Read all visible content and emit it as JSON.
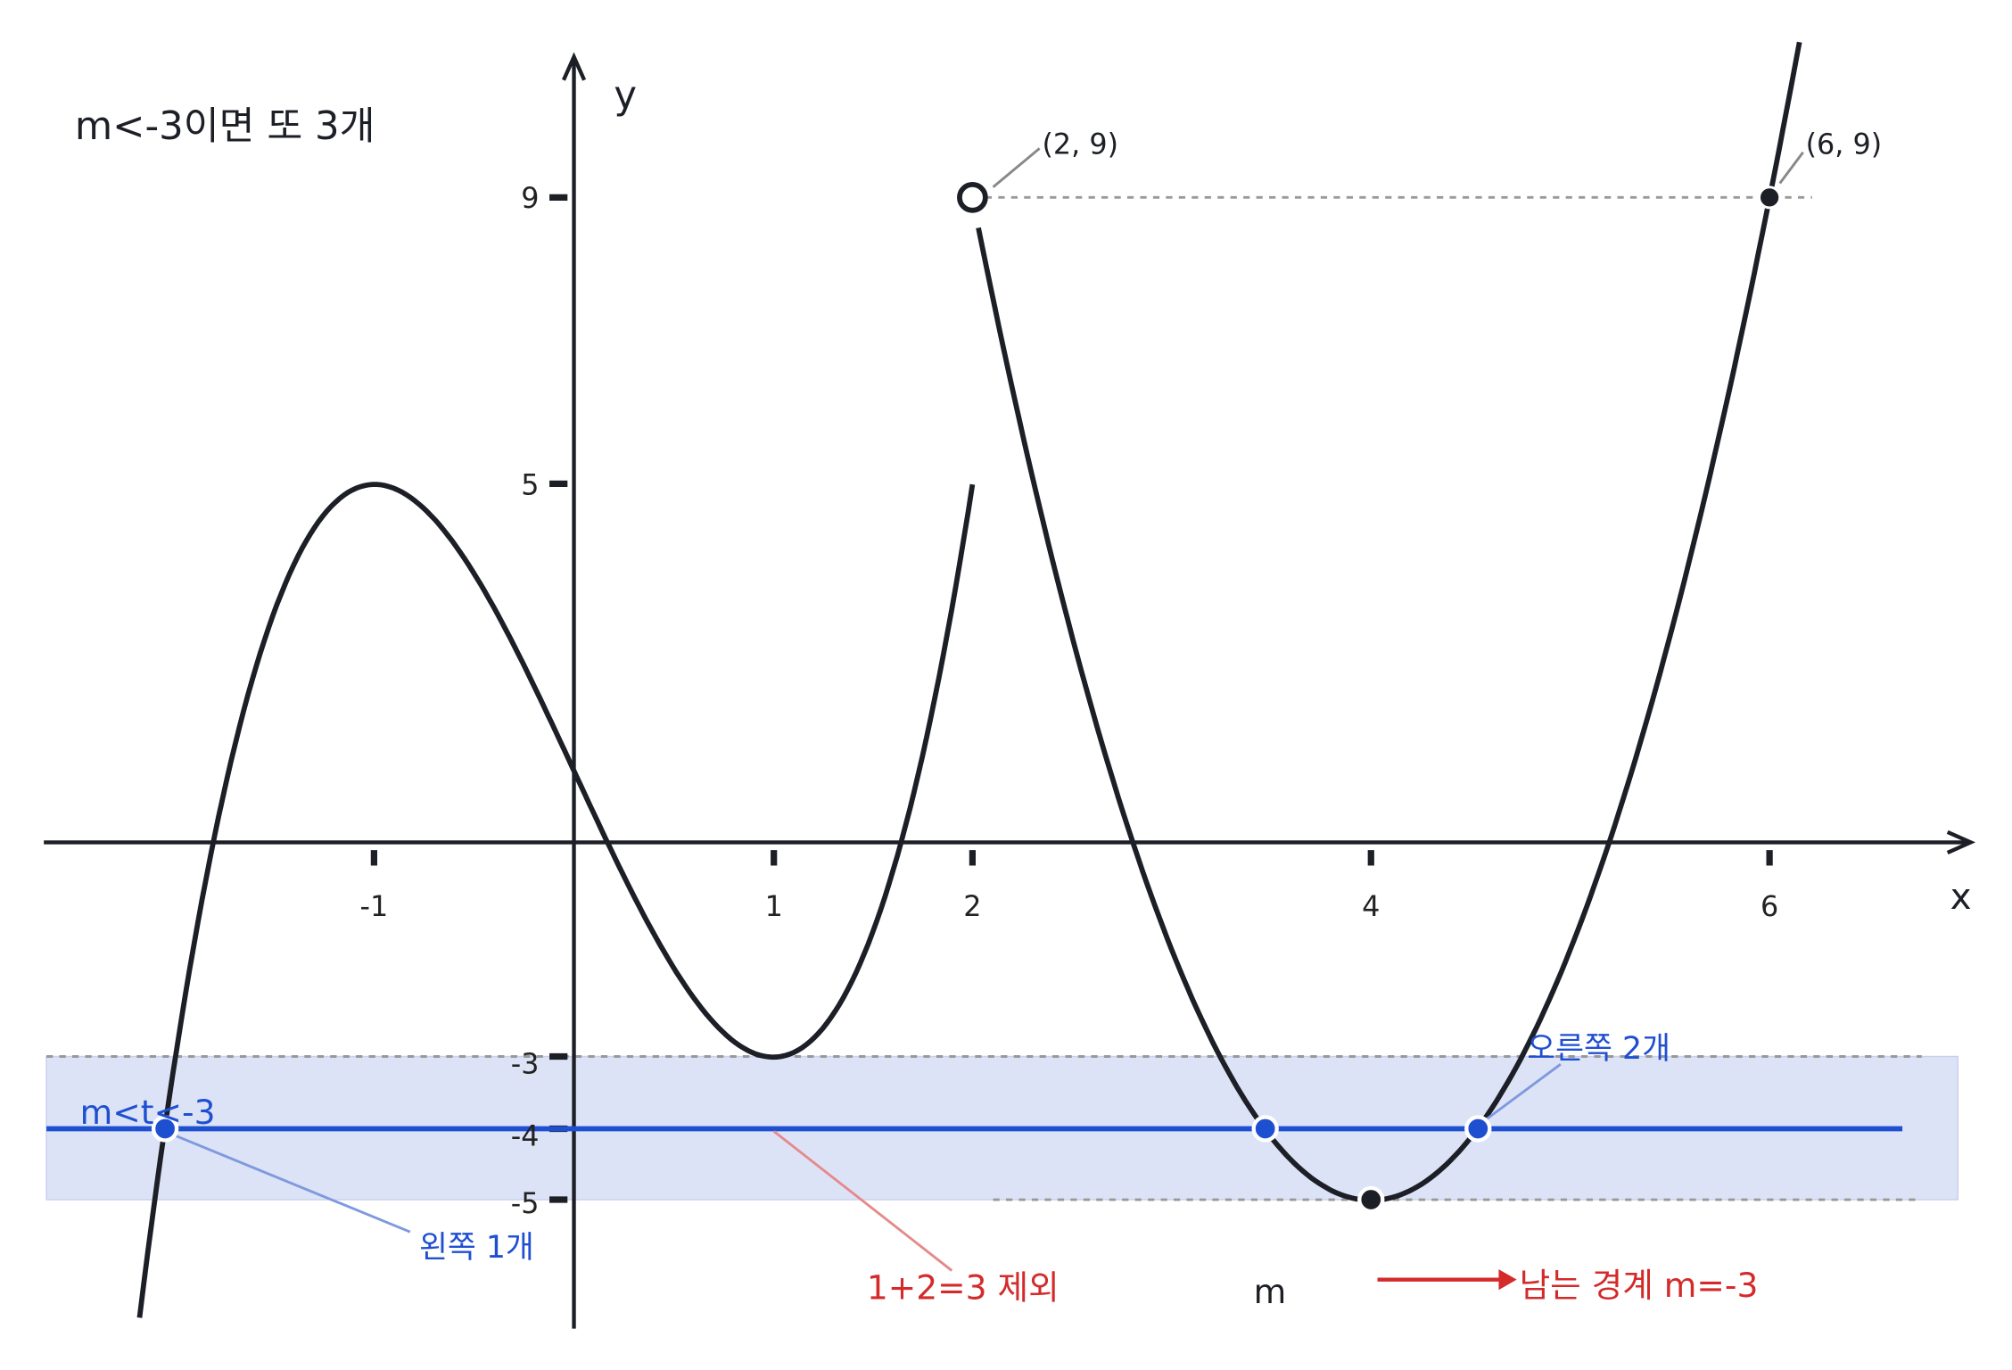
{
  "header": {
    "title": "m<-3이면 또 3개"
  },
  "axes": {
    "x_label": "x",
    "y_label": "y",
    "x_ticks": [
      "-1",
      "1",
      "2",
      "4",
      "6"
    ],
    "y_ticks": [
      "9",
      "5",
      "-3",
      "-4",
      "-5"
    ]
  },
  "points": {
    "open": "(2, 9)",
    "closed": "(6, 9)"
  },
  "annotations": {
    "range": "m<t<-3",
    "left": "왼쪽 1개",
    "right": "오른쪽 2개",
    "excluded": "1+2=3 제외",
    "m": "m",
    "remaining": "남는 경계 m=-3"
  }
}
